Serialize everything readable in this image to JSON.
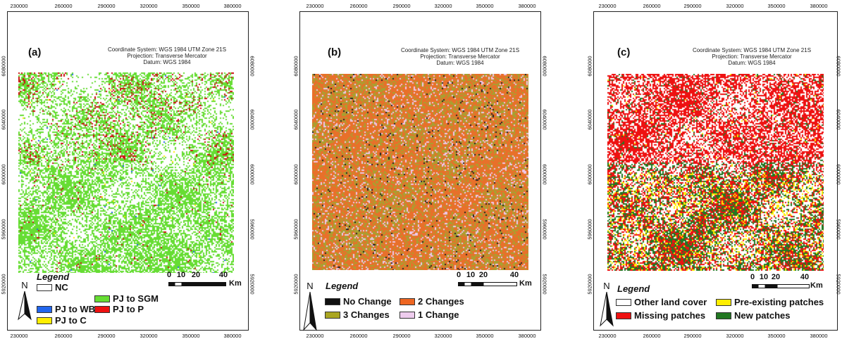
{
  "x_ticks": [
    "230000",
    "260000",
    "290000",
    "320000",
    "350000",
    "380000"
  ],
  "panels": [
    {
      "letter": "(a)",
      "coord_info": [
        "Coordinate System: WGS 1984 UTM Zone 21S",
        "Projection: Transverse Mercator",
        "Datum: WGS 1984"
      ],
      "y_ticks_left": [
        "6080000",
        "6040000",
        "6000000",
        "5960000",
        "5920000"
      ],
      "y_ticks_right": [
        "6080000",
        "6040000",
        "6000000",
        "5960000",
        "5920000"
      ],
      "legend_title": "Legend",
      "north_label": "N",
      "scale": {
        "labels": [
          "0",
          "10",
          "20",
          "40"
        ],
        "unit": "Km"
      },
      "legend_items": [
        {
          "label": "NC",
          "color": "#ffffff"
        },
        {
          "label": "PJ to SGM",
          "color": "#66dd33"
        },
        {
          "label": "PJ to WB",
          "color": "#2266ee"
        },
        {
          "label": "PJ to P",
          "color": "#ee1111"
        },
        {
          "label": "PJ to C",
          "color": "#ffee00"
        }
      ],
      "map_colors": [
        "#66dd33",
        "#cc1111",
        "#2266ee",
        "#ffee00"
      ]
    },
    {
      "letter": "(b)",
      "coord_info": [
        "Coordinate System: WGS 1984 UTM Zone 21S",
        "Projection: Transverse Mercator",
        "Datum: WGS 1984"
      ],
      "y_ticks_left": [
        "6080000",
        "6040000",
        "6000000",
        "5960000",
        "5920000"
      ],
      "y_ticks_right": [
        "6080000",
        "6040000",
        "6000000",
        "5960000",
        "5920000"
      ],
      "legend_title": "Legend",
      "north_label": "N",
      "scale": {
        "labels": [
          "0",
          "10",
          "20",
          "40"
        ],
        "unit": "Km"
      },
      "legend_items": [
        {
          "label": "No Change",
          "color": "#111111"
        },
        {
          "label": "2 Changes",
          "color": "#ee6622"
        },
        {
          "label": "3 Changes",
          "color": "#aaa622"
        },
        {
          "label": "1 Change",
          "color": "#eeccee"
        }
      ],
      "map_colors": [
        "#e8702a",
        "#a8a030",
        "#eec8e8",
        "#222222"
      ]
    },
    {
      "letter": "(c)",
      "coord_info": [
        "Coordinate System: WGS 1984 UTM Zone 21S",
        "Projection: Transverse Mercator",
        "Datum: WGS 1984"
      ],
      "y_ticks_left": [
        "6080000",
        "6040000",
        "6000000",
        "5960000",
        "5920000"
      ],
      "y_ticks_right": [
        "6080000",
        "6040000",
        "6000000",
        "5960000",
        "5920000"
      ],
      "legend_title": "Legend",
      "north_label": "N",
      "scale": {
        "labels": [
          "0",
          "10",
          "20",
          "40"
        ],
        "unit": "Km"
      },
      "legend_items": [
        {
          "label": "Other land cover",
          "color": "#ffffff"
        },
        {
          "label": "Pre-existing patches",
          "color": "#ffee00"
        },
        {
          "label": "Missing patches",
          "color": "#ee1111"
        },
        {
          "label": "New patches",
          "color": "#227722"
        }
      ],
      "map_colors": [
        "#ee1111",
        "#227722",
        "#ffee00"
      ]
    }
  ]
}
